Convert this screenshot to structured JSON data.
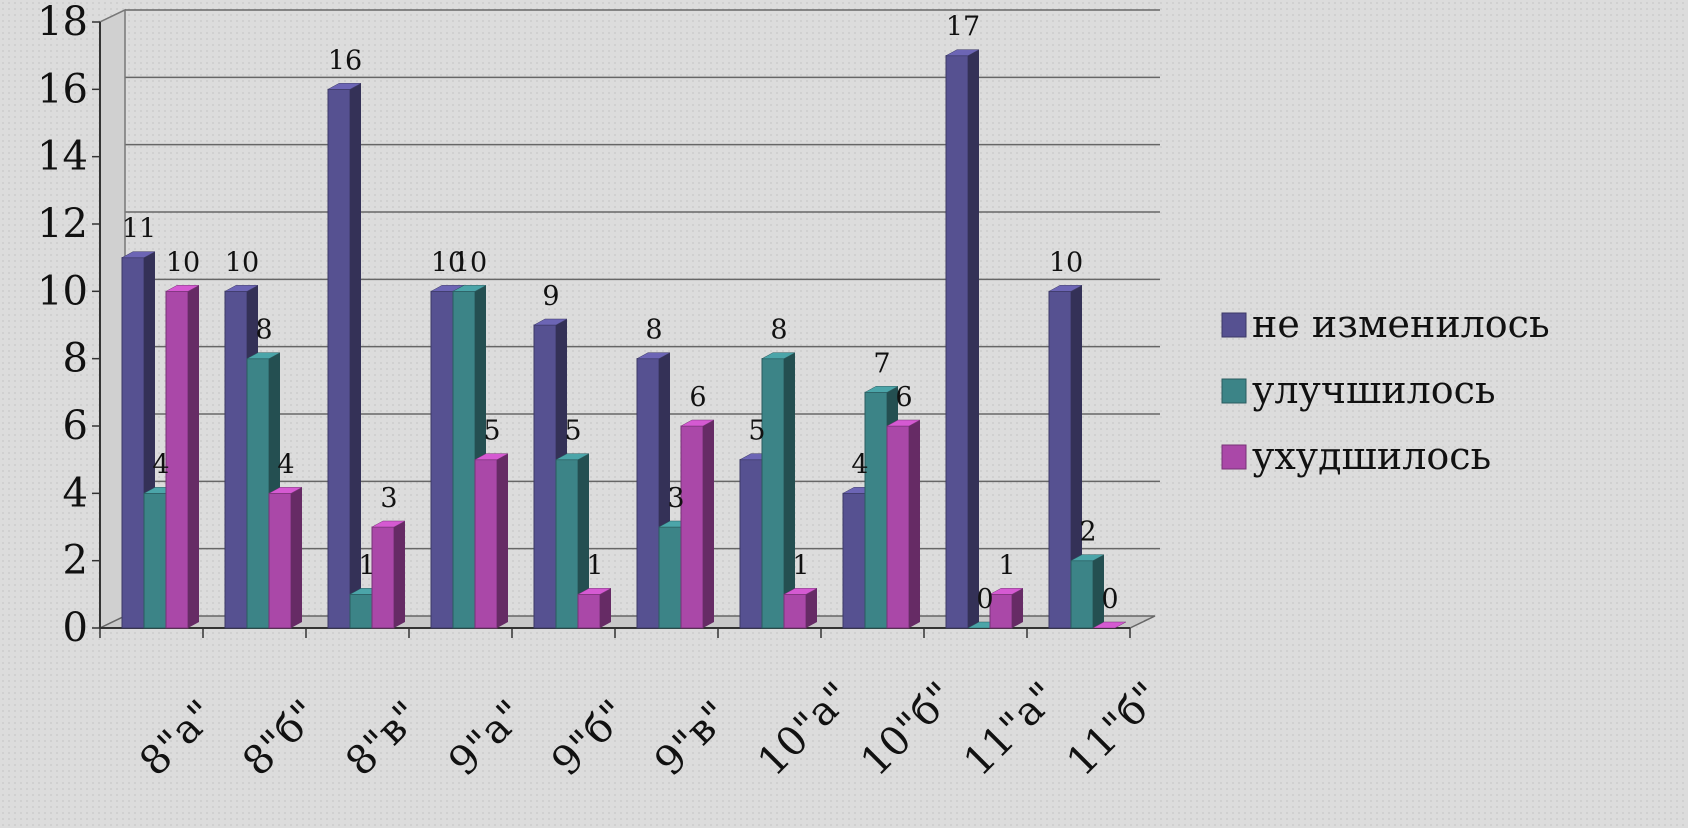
{
  "chart_data": {
    "type": "bar",
    "categories": [
      "8\"а\"",
      "8\"б\"",
      "8\"в\"",
      "9\"а\"",
      "9\"б\"",
      "9\"в\"",
      "10\"а\"",
      "10\"б\"",
      "11\"а\"",
      "11\"б\""
    ],
    "series": [
      {
        "name": "не изменилось",
        "color": "#565191",
        "values": [
          11,
          10,
          16,
          10,
          9,
          8,
          5,
          4,
          17,
          10
        ]
      },
      {
        "name": "улучшилось",
        "color": "#3c8487",
        "values": [
          4,
          8,
          1,
          10,
          5,
          3,
          8,
          7,
          0,
          2
        ]
      },
      {
        "name": "ухудшилось",
        "color": "#aa48a8",
        "values": [
          10,
          4,
          3,
          5,
          1,
          6,
          1,
          6,
          1,
          0
        ]
      }
    ],
    "ylim": [
      0,
      18
    ],
    "yticks": [
      "0",
      "2",
      "4",
      "6",
      "8",
      "10",
      "12",
      "14",
      "16",
      "18"
    ],
    "grid": true,
    "legend_position": "right"
  }
}
